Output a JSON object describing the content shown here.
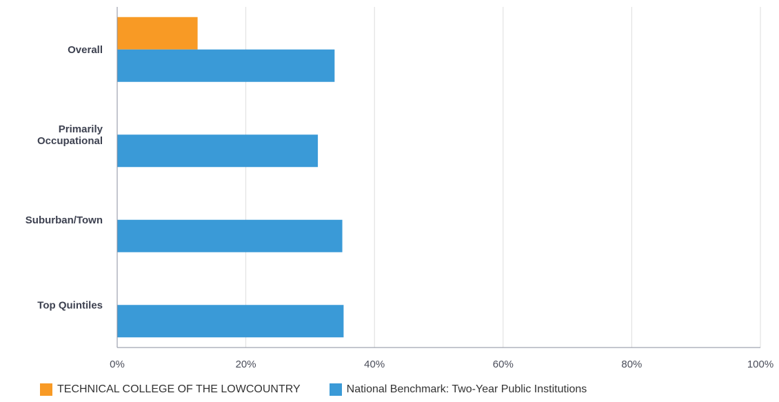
{
  "chart_data": {
    "type": "bar",
    "orientation": "horizontal",
    "categories": [
      [
        "Overall"
      ],
      [
        "Primarily",
        "Occupational"
      ],
      [
        "Suburban/Town"
      ],
      [
        "Top Quintiles"
      ]
    ],
    "series": [
      {
        "name": "TECHNICAL COLLEGE OF THE LOWCOUNTRY",
        "color": "#f89a25",
        "values": [
          12.5,
          null,
          null,
          null
        ]
      },
      {
        "name": "National Benchmark: Two-Year Public Institutions",
        "color": "#3a9ad7",
        "values": [
          33.8,
          31.2,
          35.0,
          35.2
        ]
      }
    ],
    "xlim": [
      0,
      100
    ],
    "xticks": [
      "0%",
      "20%",
      "40%",
      "60%",
      "80%",
      "100%"
    ],
    "xtick_values": [
      0,
      20,
      40,
      60,
      80,
      100
    ],
    "grid": true,
    "legend_position": "bottom-left"
  }
}
